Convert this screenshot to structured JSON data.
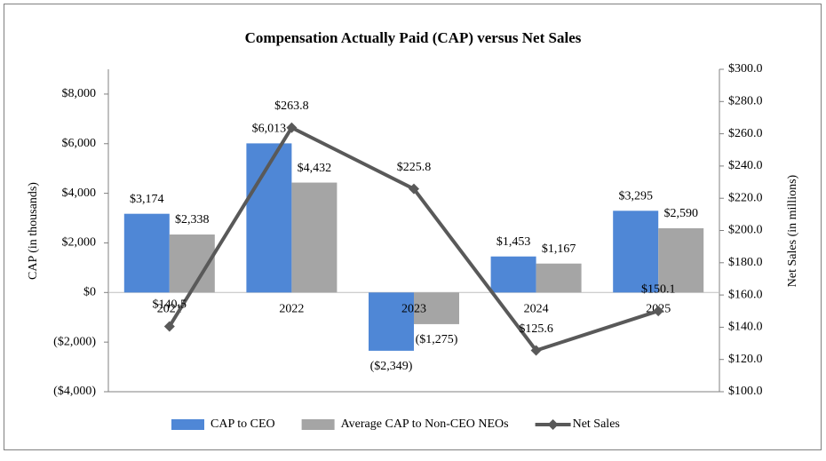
{
  "chart_data": {
    "type": "bar-line",
    "title": "Compensation Actually Paid (CAP) versus Net Sales",
    "y_label": "CAP (in thousands)",
    "y2_label": "Net Sales (in millions)",
    "categories": [
      "2021",
      "2022",
      "2023",
      "2024",
      "2025"
    ],
    "series": [
      {
        "name": "CAP to CEO",
        "type": "bar",
        "color": "#4f87d6",
        "values": [
          3174,
          6013,
          -2349,
          1453,
          3295
        ],
        "value_labels": [
          "$3,174",
          "$6,013",
          "($2,349)",
          "$1,453",
          "$3,295"
        ]
      },
      {
        "name": "Average CAP to Non-CEO NEOs",
        "type": "bar",
        "color": "#a5a5a5",
        "values": [
          2338,
          4432,
          -1275,
          1167,
          2590
        ],
        "value_labels": [
          "$2,338",
          "$4,432",
          "($1,275)",
          "$1,167",
          "$2,590"
        ]
      },
      {
        "name": "Net Sales",
        "type": "line",
        "axis": "y2",
        "color": "#595959",
        "values": [
          140.5,
          263.8,
          225.8,
          125.6,
          150.1
        ],
        "value_labels": [
          "$140.5",
          "$263.8",
          "$225.8",
          "$125.6",
          "$150.1"
        ]
      }
    ],
    "ylim": [
      -4000,
      9000
    ],
    "yticks": [
      {
        "value": -4000,
        "label": "($4,000)"
      },
      {
        "value": -2000,
        "label": "($2,000)"
      },
      {
        "value": 0,
        "label": "$0"
      },
      {
        "value": 2000,
        "label": "$2,000"
      },
      {
        "value": 4000,
        "label": "$4,000"
      },
      {
        "value": 6000,
        "label": "$6,000"
      },
      {
        "value": 8000,
        "label": "$8,000"
      }
    ],
    "y2lim": [
      100,
      300
    ],
    "y2ticks": [
      {
        "value": 100,
        "label": "$100.0"
      },
      {
        "value": 120,
        "label": "$120.0"
      },
      {
        "value": 140,
        "label": "$140.0"
      },
      {
        "value": 160,
        "label": "$160.0"
      },
      {
        "value": 180,
        "label": "$180.0"
      },
      {
        "value": 200,
        "label": "$200.0"
      },
      {
        "value": 220,
        "label": "$220.0"
      },
      {
        "value": 240,
        "label": "$240.0"
      },
      {
        "value": 260,
        "label": "$260.0"
      },
      {
        "value": 280,
        "label": "$280.0"
      },
      {
        "value": 300,
        "label": "$300.0"
      }
    ],
    "legend": "bottom"
  }
}
